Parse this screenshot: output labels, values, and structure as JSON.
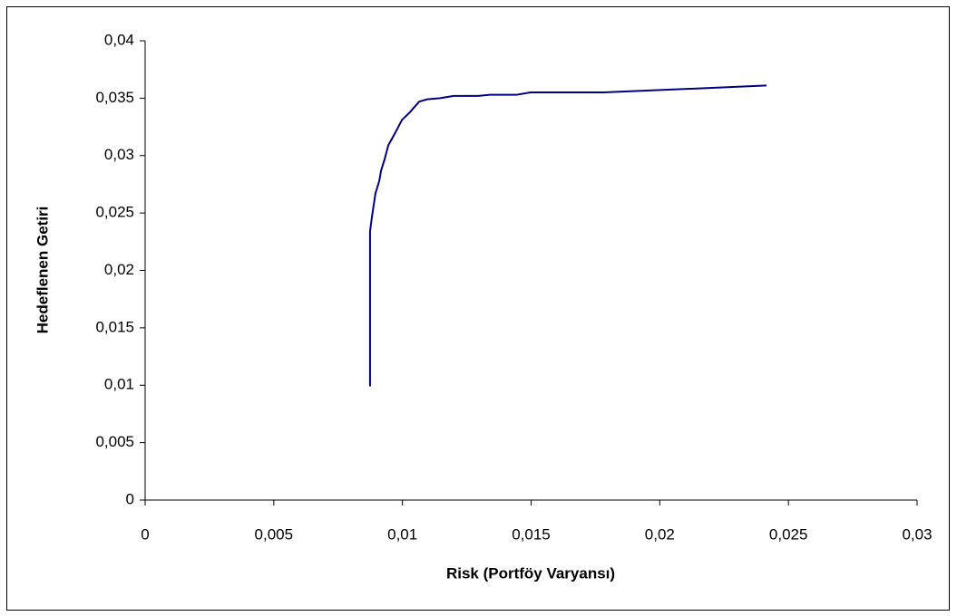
{
  "chart_data": {
    "type": "line",
    "x_label": "Risk (Portföy Varyansı)",
    "y_label": "Hedeflenen Getiri",
    "x": [
      0.00874,
      0.00874,
      0.00881,
      0.00885,
      0.00895,
      0.0091,
      0.00917,
      0.00931,
      0.00945,
      0.0097,
      0.00998,
      0.0103,
      0.01065,
      0.01096,
      0.01146,
      0.01199,
      0.01294,
      0.0134,
      0.01445,
      0.01498,
      0.0178,
      0.02415
    ],
    "series": [
      {
        "color": "#000080",
        "values": [
          0.0099,
          0.0234,
          0.0246,
          0.0252,
          0.0267,
          0.0278,
          0.0287,
          0.0297,
          0.0309,
          0.0319,
          0.0331,
          0.0338,
          0.0347,
          0.0349,
          0.035,
          0.0352,
          0.0352,
          0.0353,
          0.0353,
          0.0355,
          0.0355,
          0.0361
        ]
      }
    ],
    "xlim": [
      0,
      0.03
    ],
    "xticks": [
      0,
      {
        "value": 0.005,
        "label": "0,005"
      },
      {
        "value": 0.01,
        "label": "0,01"
      },
      {
        "value": 0.015,
        "label": "0,015"
      },
      {
        "value": 0.02,
        "label": "0,02"
      },
      {
        "value": 0.025,
        "label": "0,025"
      },
      {
        "value": 0.03,
        "label": "0,03"
      }
    ],
    "ylim": [
      0,
      0.04
    ],
    "yticks": [
      0,
      {
        "value": 0.005,
        "label": "0,005"
      },
      {
        "value": 0.01,
        "label": "0,01"
      },
      {
        "value": 0.015,
        "label": "0,015"
      },
      {
        "value": 0.02,
        "label": "0,02"
      },
      {
        "value": 0.025,
        "label": "0,025"
      },
      {
        "value": 0.03,
        "label": "0,03"
      },
      {
        "value": 0.035,
        "label": "0,035"
      },
      {
        "value": 0.04,
        "label": "0,04"
      }
    ],
    "grid": false
  }
}
